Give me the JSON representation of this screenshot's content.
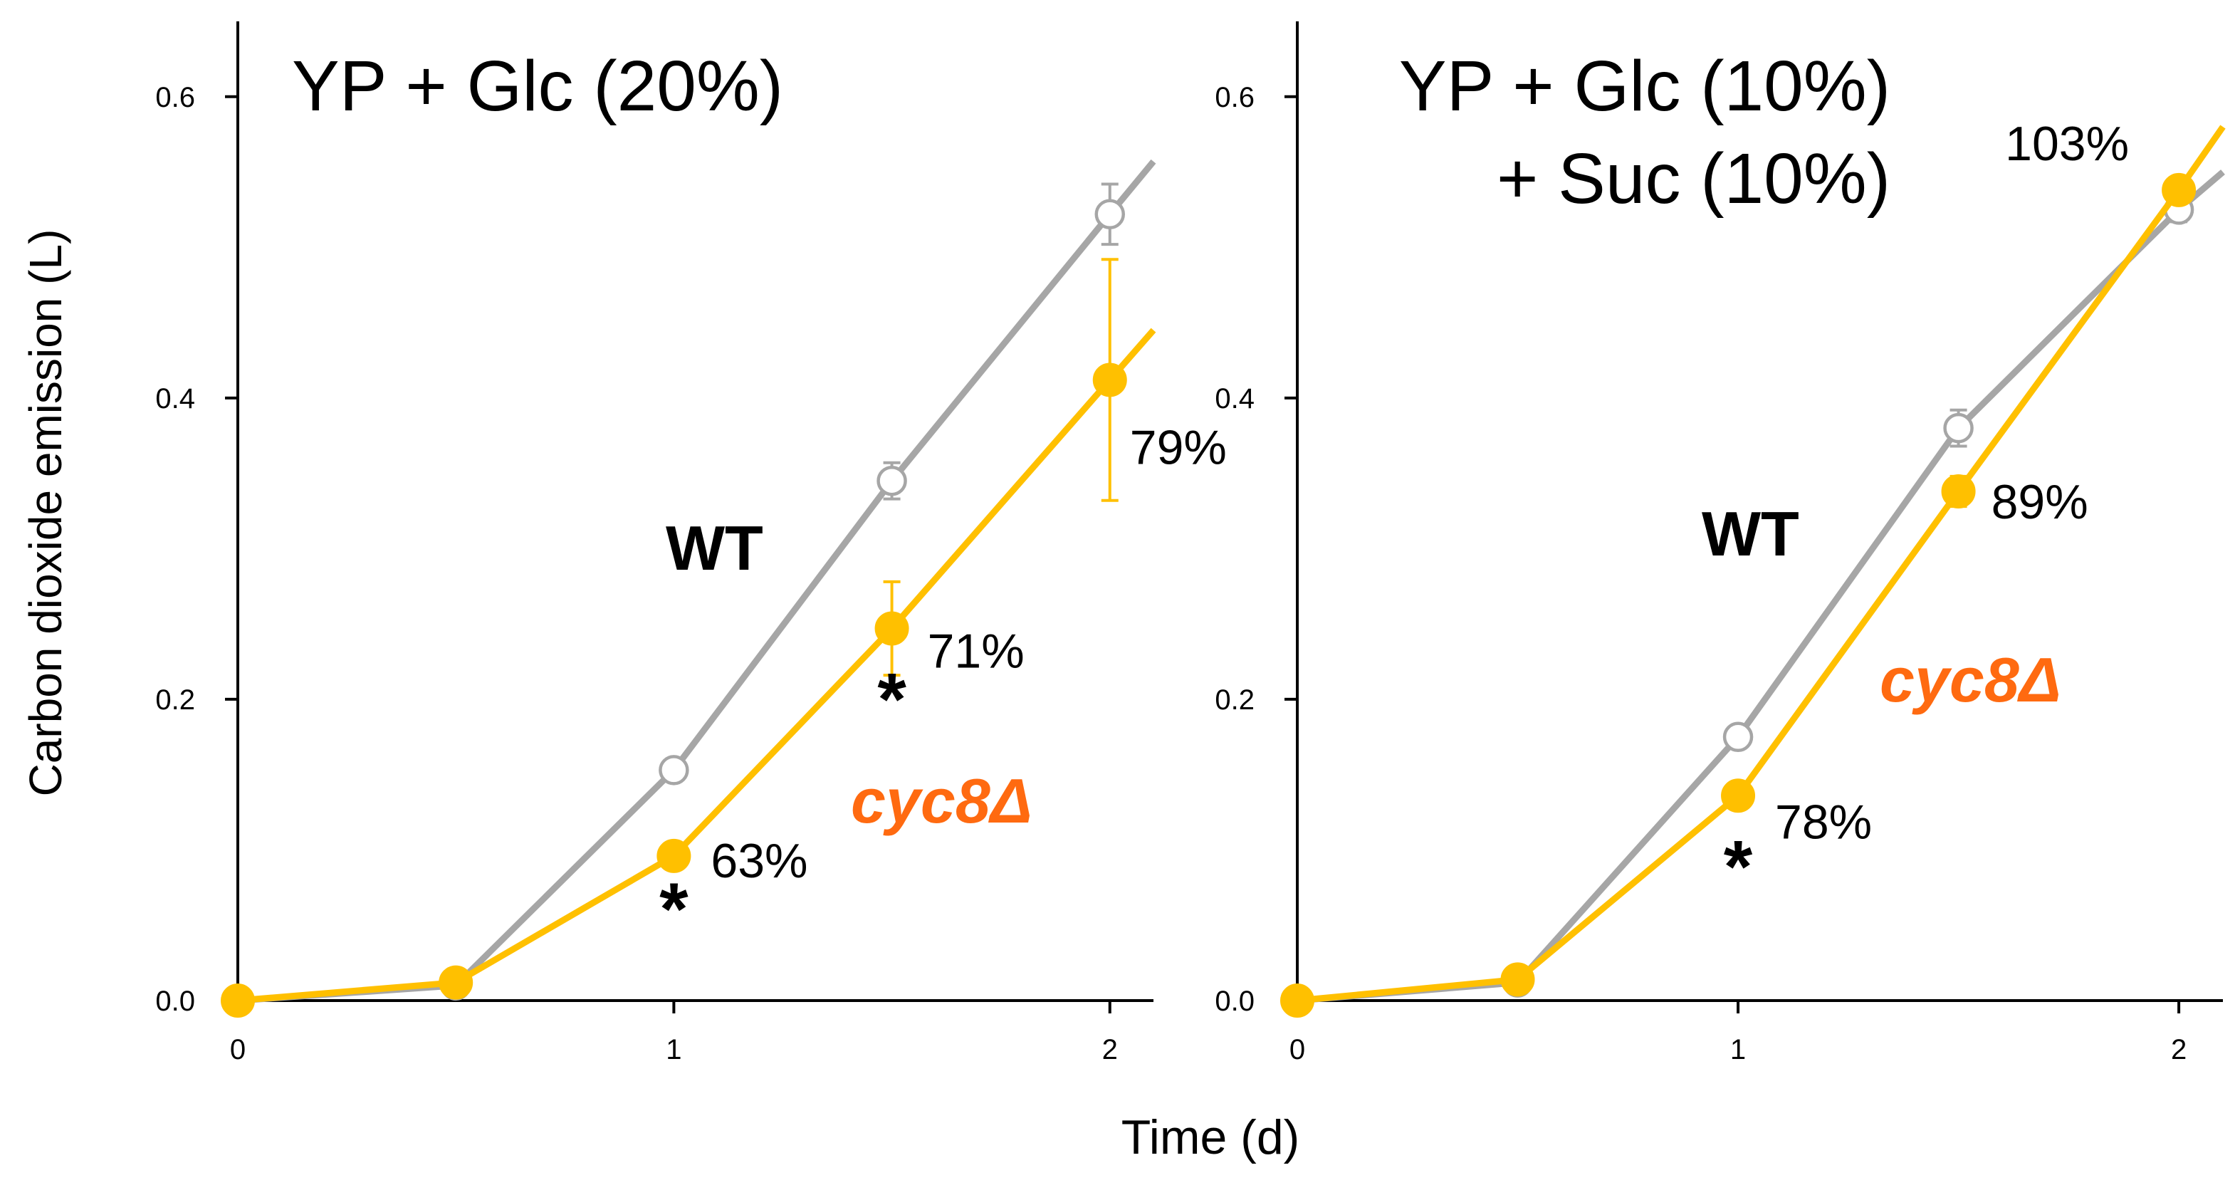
{
  "figure": {
    "xlabel": "Time (d)",
    "ylabel": "Carbon dioxide emission (L)",
    "significance_marker": "*"
  },
  "colors": {
    "wt": "#a6a6a6",
    "cyc8": "#ffc000",
    "cyc8_label": "#ff6a10",
    "axis": "#000000"
  },
  "chart_data": [
    {
      "type": "line",
      "title_lines": [
        "YP + Glc (20%)"
      ],
      "xlabel": "Time (d)",
      "ylabel": "Carbon dioxide emission (L)",
      "xlim": [
        0,
        2.1
      ],
      "ylim": [
        0,
        0.65
      ],
      "x_ticks": [
        0,
        1,
        2
      ],
      "x_tick_labels": [
        "0",
        "1",
        "2"
      ],
      "y_ticks": [
        0,
        0.2,
        0.4,
        0.6
      ],
      "y_tick_labels": [
        "0.0",
        "0.2",
        "0.4",
        "0.6"
      ],
      "grid": false,
      "series": [
        {
          "name": "WT",
          "marker": "open-circle",
          "x": [
            0,
            0.5,
            1,
            1.5,
            2
          ],
          "y": [
            0.0,
            0.01,
            0.153,
            0.345,
            0.522
          ],
          "err": [
            0,
            0,
            0,
            0.012,
            0.02
          ],
          "extend_to": [
            2.1,
            0.557
          ]
        },
        {
          "name": "cyc8Δ",
          "marker": "filled-circle",
          "x": [
            0,
            0.5,
            1,
            1.5,
            2
          ],
          "y": [
            0.0,
            0.012,
            0.096,
            0.247,
            0.412
          ],
          "err": [
            0,
            0,
            0,
            0.031,
            0.08
          ],
          "extend_to": [
            2.1,
            0.445
          ]
        }
      ],
      "annotations": {
        "percents": [
          {
            "text": "63%",
            "x": 1,
            "y": 0.096
          },
          {
            "text": "71%",
            "x": 1.5,
            "y": 0.247
          },
          {
            "text": "79%",
            "x": 2,
            "y": 0.412
          }
        ],
        "stars_at_x": [
          1,
          1.5
        ],
        "wt_label": "WT",
        "cyc8_label": "cyc8Δ"
      }
    },
    {
      "type": "line",
      "title_lines": [
        "YP + Glc (10%)",
        "+ Suc (10%)"
      ],
      "xlabel": "Time (d)",
      "ylabel": "",
      "xlim": [
        0,
        2.1
      ],
      "ylim": [
        0,
        0.65
      ],
      "x_ticks": [
        0,
        1,
        2
      ],
      "x_tick_labels": [
        "0",
        "1",
        "2"
      ],
      "y_ticks": [
        0,
        0.2,
        0.4,
        0.6
      ],
      "y_tick_labels": [
        "0.0",
        "0.2",
        "0.4",
        "0.6"
      ],
      "grid": false,
      "series": [
        {
          "name": "WT",
          "marker": "open-circle",
          "x": [
            0,
            0.5,
            1,
            1.5,
            2
          ],
          "y": [
            0.0,
            0.012,
            0.175,
            0.38,
            0.525
          ],
          "err": [
            0,
            0,
            0,
            0.012,
            0.008
          ],
          "extend_to": [
            2.1,
            0.55
          ]
        },
        {
          "name": "cyc8Δ",
          "marker": "filled-circle",
          "x": [
            0,
            0.5,
            1,
            1.5,
            2
          ],
          "y": [
            0.0,
            0.014,
            0.136,
            0.338,
            0.538
          ],
          "err": [
            0,
            0,
            0,
            0.01,
            0.008
          ],
          "extend_to": [
            2.1,
            0.58
          ]
        }
      ],
      "annotations": {
        "percents": [
          {
            "text": "78%",
            "x": 1,
            "y": 0.136
          },
          {
            "text": "89%",
            "x": 1.5,
            "y": 0.338
          },
          {
            "text": "103%",
            "x": 2,
            "y": 0.538
          }
        ],
        "stars_at_x": [
          1
        ],
        "wt_label": "WT",
        "cyc8_label": "cyc8Δ"
      }
    }
  ]
}
